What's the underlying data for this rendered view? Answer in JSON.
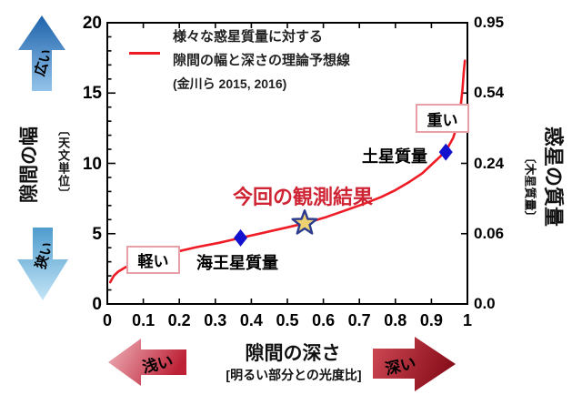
{
  "colors": {
    "curve": "#ee1c25",
    "diamond": "#1212cf",
    "star_fill": "#ecd271",
    "star_stroke": "#2d3c8e",
    "result_text": "#cf2433",
    "box_border": "#e8a0a8"
  },
  "chart_data": {
    "type": "line",
    "title": "",
    "xlabel": "隙間の深さ",
    "xlabel_unit": "[明るい部分との光度比]",
    "ylabel_left": "隙間の幅",
    "ylabel_left_unit": "〔天文単位〕",
    "ylabel_right": "惑星の質量",
    "ylabel_right_unit": "〔木星質量〕",
    "xlim": [
      0,
      1
    ],
    "ylim_left": [
      0,
      20
    ],
    "x_ticks": {
      "values": [
        0,
        0.1,
        0.2,
        0.3,
        0.4,
        0.5,
        0.6,
        0.7,
        0.8,
        0.9,
        1
      ],
      "labels": [
        "0",
        "0.1",
        "0.2",
        "0.3",
        "0.4",
        "0.5",
        "0.6",
        "0.7",
        "0.8",
        "0.9",
        "1"
      ]
    },
    "y_ticks_left": {
      "values": [
        0,
        5,
        10,
        15,
        20
      ],
      "labels": [
        "0",
        "5",
        "10",
        "15",
        "20"
      ],
      "minor_step": 1
    },
    "y_ticks_right": {
      "positions_on_left_scale": [
        0,
        5,
        10,
        15,
        20
      ],
      "labels": [
        "0.0",
        "0.06",
        "0.24",
        "0.54",
        "0.95"
      ]
    },
    "legend": {
      "lines": [
        "様々な惑星質量に対する",
        "隙間の幅と深さの理論予想線",
        "(金川ら 2015, 2016)"
      ]
    },
    "series": [
      {
        "name": "隙間の幅と深さの理論予想線",
        "color": "#ee1c25",
        "points": [
          [
            0.008,
            1.55
          ],
          [
            0.018,
            2.0
          ],
          [
            0.03,
            2.3
          ],
          [
            0.05,
            2.6
          ],
          [
            0.07,
            2.85
          ],
          [
            0.1,
            3.1
          ],
          [
            0.14,
            3.4
          ],
          [
            0.19,
            3.7
          ],
          [
            0.25,
            4.05
          ],
          [
            0.31,
            4.35
          ],
          [
            0.37,
            4.7
          ],
          [
            0.44,
            5.1
          ],
          [
            0.5,
            5.45
          ],
          [
            0.55,
            5.75
          ],
          [
            0.61,
            6.2
          ],
          [
            0.66,
            6.65
          ],
          [
            0.71,
            7.1
          ],
          [
            0.76,
            7.6
          ],
          [
            0.8,
            8.1
          ],
          [
            0.84,
            8.7
          ],
          [
            0.875,
            9.3
          ],
          [
            0.9,
            9.9
          ],
          [
            0.925,
            10.5
          ],
          [
            0.945,
            11.1
          ],
          [
            0.96,
            11.8
          ],
          [
            0.972,
            12.7
          ],
          [
            0.98,
            13.8
          ],
          [
            0.986,
            15.2
          ],
          [
            0.99,
            16.5
          ],
          [
            0.993,
            17.3
          ]
        ]
      }
    ],
    "markers": [
      {
        "id": "neptune",
        "label": "海王星質量",
        "shape": "diamond",
        "x": 0.37,
        "y": 4.7
      },
      {
        "id": "saturn",
        "label": "土星質量",
        "shape": "diamond",
        "x": 0.94,
        "y": 10.8
      },
      {
        "id": "result",
        "label": "今回の観測結果",
        "shape": "star",
        "x": 0.548,
        "y": 5.75
      }
    ],
    "annotations": {
      "light_box": "軽い",
      "heavy_box": "重い"
    },
    "arrows": {
      "up": {
        "label": "広い"
      },
      "down": {
        "label": "狭い"
      },
      "left": {
        "label": "浅い"
      },
      "right": {
        "label": "深い"
      }
    }
  }
}
